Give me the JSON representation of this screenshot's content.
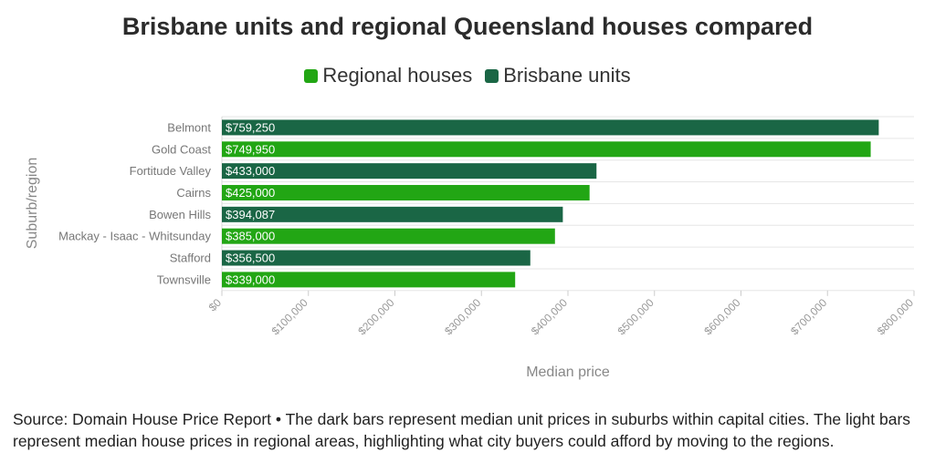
{
  "chart_data": {
    "type": "bar",
    "orientation": "horizontal",
    "title": "Brisbane units and regional Queensland houses compared",
    "xlabel": "Median price",
    "ylabel": "Suburb/region",
    "xlim": [
      0,
      800000
    ],
    "x_ticks": [
      0,
      100000,
      200000,
      300000,
      400000,
      500000,
      600000,
      700000,
      800000
    ],
    "x_tick_labels": [
      "$0",
      "$100,000",
      "$200,000",
      "$300,000",
      "$400,000",
      "$500,000",
      "$600,000",
      "$700,000",
      "$800,000"
    ],
    "grid": true,
    "legend_position": "top-center",
    "legend": [
      {
        "name": "Regional houses",
        "color": "#22a614"
      },
      {
        "name": "Brisbane units",
        "color": "#1a6645"
      }
    ],
    "categories": [
      "Belmont",
      "Gold Coast",
      "Fortitude Valley",
      "Cairns",
      "Bowen Hills",
      "Mackay - Isaac - Whitsunday",
      "Stafford",
      "Townsville"
    ],
    "values": [
      759250,
      749950,
      433000,
      425000,
      394087,
      385000,
      356500,
      339000
    ],
    "value_labels": [
      "$759,250",
      "$749,950",
      "$433,000",
      "$425,000",
      "$394,087",
      "$385,000",
      "$356,500",
      "$339,000"
    ],
    "series_of_bar": [
      "Brisbane units",
      "Regional houses",
      "Brisbane units",
      "Regional houses",
      "Brisbane units",
      "Regional houses",
      "Brisbane units",
      "Regional houses"
    ]
  },
  "source_note": "Source: Domain House Price Report • The dark bars represent median unit prices in suburbs within capital cities. The light bars represent median house prices in regional areas, highlighting what city buyers could afford by moving to the regions."
}
